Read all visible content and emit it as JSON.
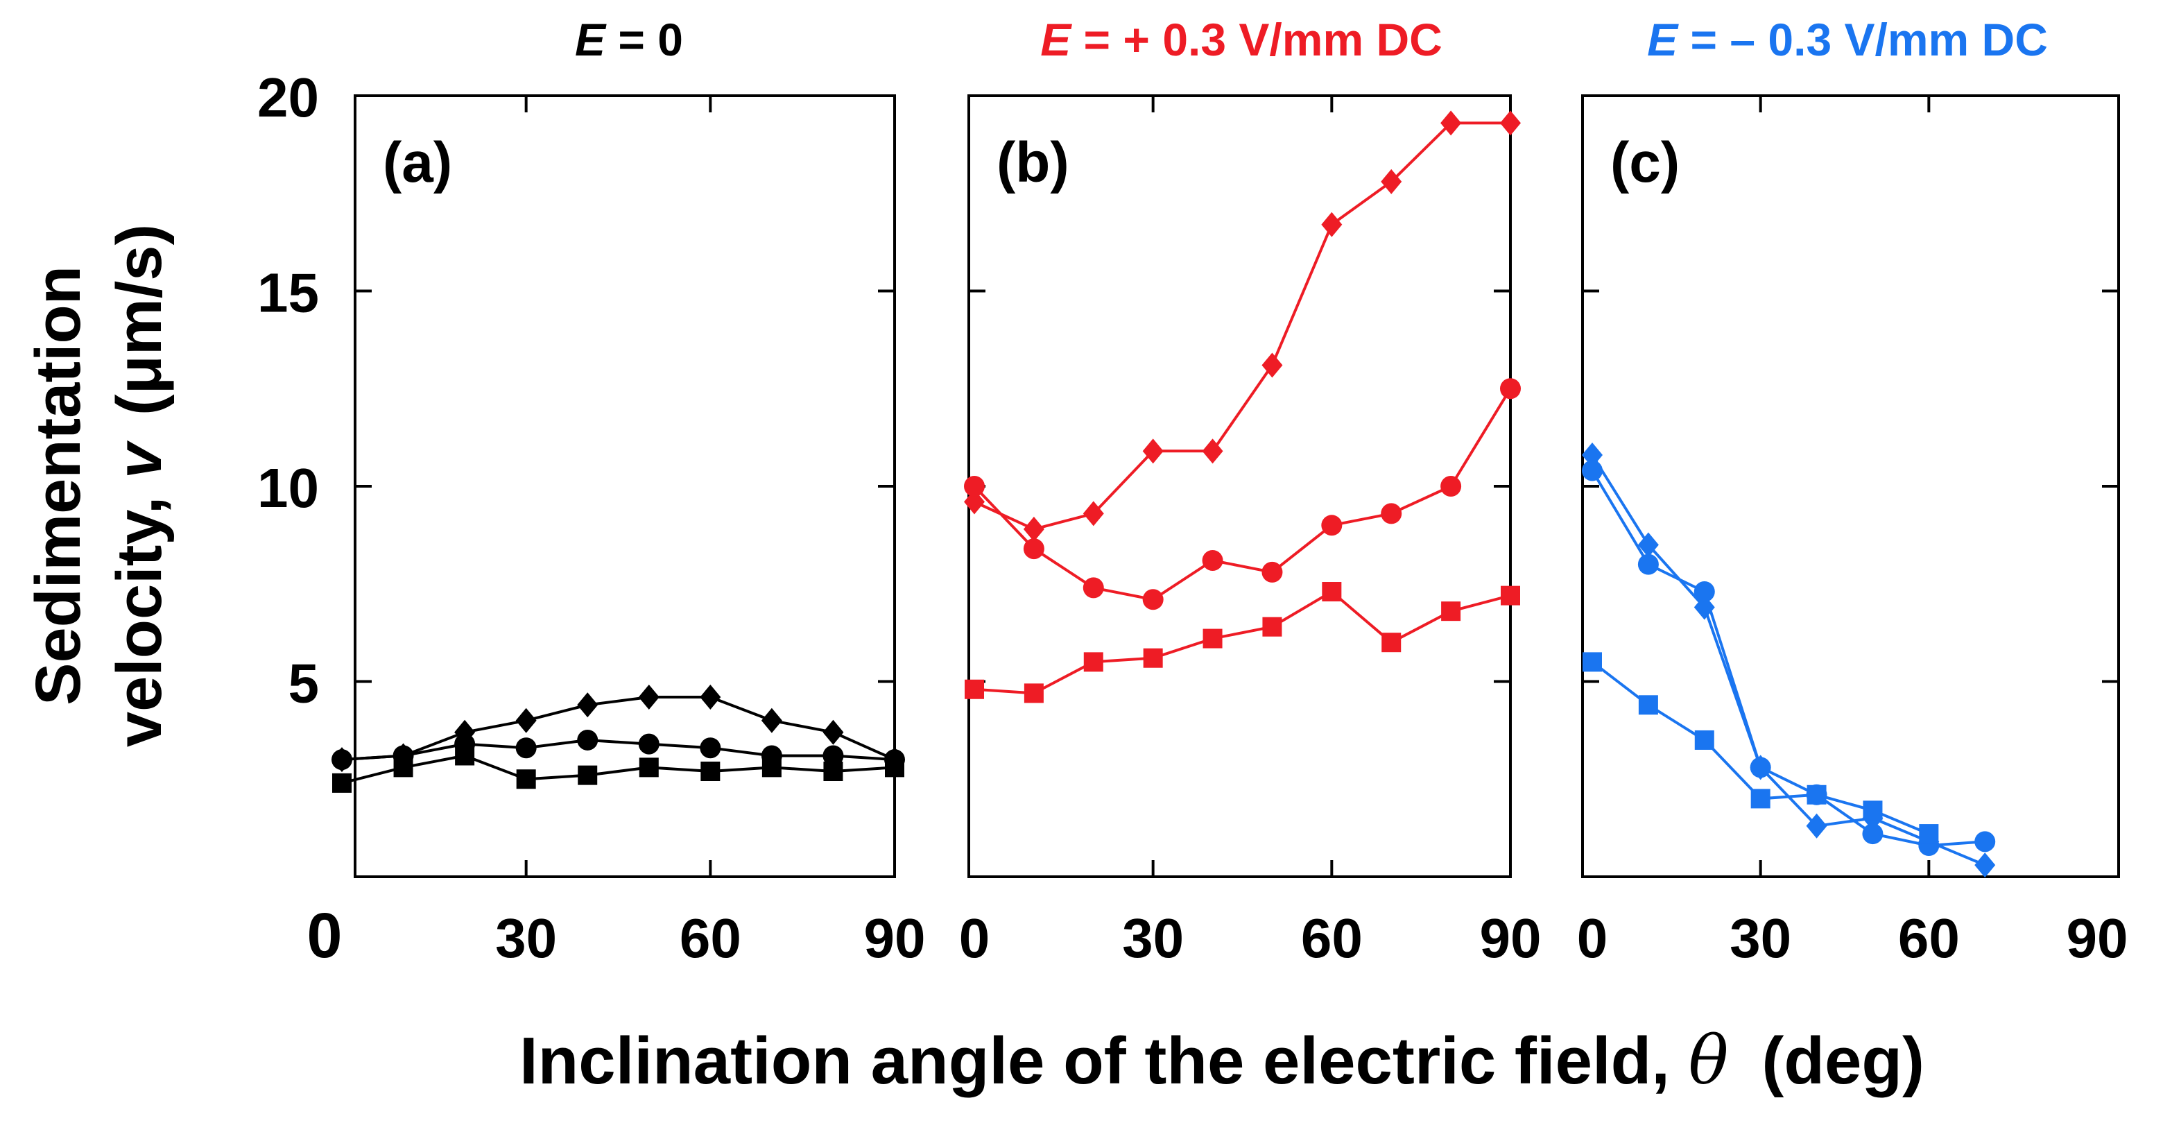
{
  "figure": {
    "ylabel_line1": "Sedimentation",
    "ylabel_line2": "velocity, ",
    "ylabel_var": "v",
    "ylabel_unit": "(μm/s)",
    "xlabel_text": "Inclination angle of the electric field, ",
    "xlabel_var": "θ",
    "xlabel_unit": "(deg)"
  },
  "chart_data": [
    {
      "type": "line",
      "panel_label": "(a)",
      "title_var": "E",
      "title_rest": " = 0",
      "color": "#000000",
      "xlim": [
        0,
        90
      ],
      "ylim": [
        0,
        20
      ],
      "x_ticks": [
        "30",
        "60",
        "90"
      ],
      "y_ticks": [
        "5",
        "10",
        "15",
        "20"
      ],
      "origin_label": "0",
      "series": [
        {
          "marker": "diamond",
          "x": [
            0,
            10,
            20,
            30,
            40,
            50,
            60,
            70,
            80,
            90
          ],
          "y": [
            3.0,
            3.1,
            3.7,
            4.0,
            4.4,
            4.6,
            4.6,
            4.0,
            3.7,
            3.0
          ]
        },
        {
          "marker": "circle",
          "x": [
            0,
            10,
            20,
            30,
            40,
            50,
            60,
            70,
            80,
            90
          ],
          "y": [
            3.0,
            3.1,
            3.4,
            3.3,
            3.5,
            3.4,
            3.3,
            3.1,
            3.1,
            3.0
          ]
        },
        {
          "marker": "square",
          "x": [
            0,
            10,
            20,
            30,
            40,
            50,
            60,
            70,
            80,
            90
          ],
          "y": [
            2.4,
            2.8,
            3.1,
            2.5,
            2.6,
            2.8,
            2.7,
            2.8,
            2.7,
            2.8
          ]
        }
      ]
    },
    {
      "type": "line",
      "panel_label": "(b)",
      "title_var": "E",
      "title_rest": " = + 0.3 V/mm DC",
      "color": "#ee1c25",
      "xlim": [
        0,
        90
      ],
      "ylim": [
        0,
        20
      ],
      "x_ticks": [
        "0",
        "30",
        "60",
        "90"
      ],
      "y_ticks": [],
      "origin_label": "",
      "series": [
        {
          "marker": "diamond",
          "x": [
            0,
            10,
            20,
            30,
            40,
            50,
            60,
            70,
            80,
            90
          ],
          "y": [
            9.6,
            8.9,
            9.3,
            10.9,
            10.9,
            13.1,
            16.7,
            17.8,
            19.3,
            19.3
          ]
        },
        {
          "marker": "circle",
          "x": [
            0,
            10,
            20,
            30,
            40,
            50,
            60,
            70,
            80,
            90
          ],
          "y": [
            10.0,
            8.4,
            7.4,
            7.1,
            8.1,
            7.8,
            9.0,
            9.3,
            10.0,
            12.5
          ]
        },
        {
          "marker": "square",
          "x": [
            0,
            10,
            20,
            30,
            40,
            50,
            60,
            70,
            80,
            90
          ],
          "y": [
            4.8,
            4.7,
            5.5,
            5.6,
            6.1,
            6.4,
            7.3,
            6.0,
            6.8,
            7.2
          ]
        }
      ]
    },
    {
      "type": "line",
      "panel_label": "(c)",
      "title_var": "E",
      "title_rest": " = – 0.3 V/mm DC",
      "color": "#1a75f0",
      "xlim": [
        0,
        90
      ],
      "ylim": [
        0,
        20
      ],
      "x_ticks": [
        "0",
        "30",
        "60",
        "90"
      ],
      "y_ticks": [],
      "origin_label": "",
      "series": [
        {
          "marker": "diamond",
          "x": [
            0,
            10,
            20,
            30,
            40,
            50,
            60,
            70
          ],
          "y": [
            10.8,
            8.5,
            6.9,
            2.8,
            1.3,
            1.5,
            0.9,
            0.3
          ]
        },
        {
          "marker": "circle",
          "x": [
            0,
            10,
            20,
            30,
            40,
            50,
            60,
            70
          ],
          "y": [
            10.4,
            8.0,
            7.3,
            2.8,
            2.1,
            1.1,
            0.8,
            0.9
          ]
        },
        {
          "marker": "square",
          "x": [
            0,
            10,
            20,
            30,
            40,
            50,
            60
          ],
          "y": [
            5.5,
            4.4,
            3.5,
            2.0,
            2.1,
            1.7,
            1.1
          ]
        }
      ]
    }
  ]
}
